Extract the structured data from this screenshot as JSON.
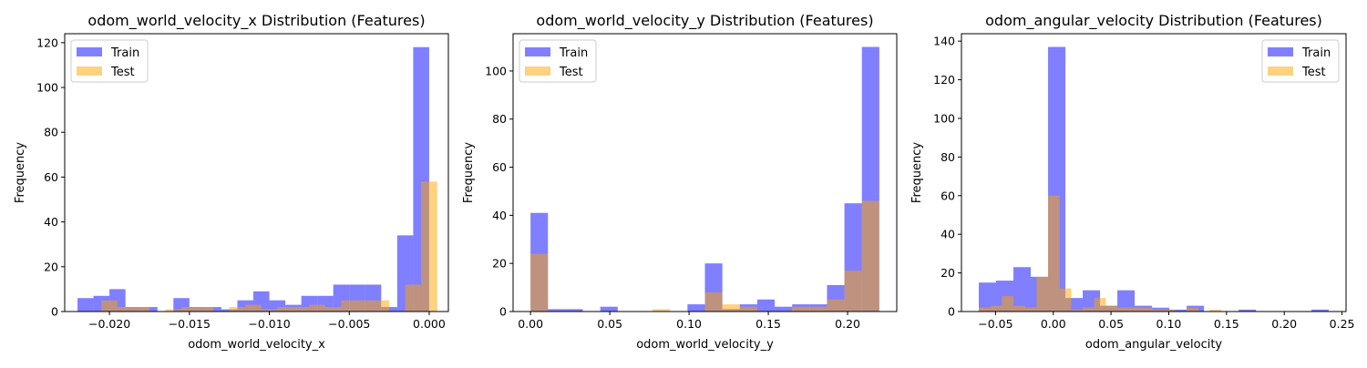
{
  "chart_data": [
    {
      "type": "histogram",
      "title": "odom_world_velocity_x Distribution (Features)",
      "xlabel": "odom_world_velocity_x",
      "ylabel": "Frequency",
      "xlim": [
        -0.0228,
        0.0012
      ],
      "ylim": [
        0,
        124
      ],
      "xticks": [
        -0.02,
        -0.015,
        -0.01,
        -0.005,
        0.0
      ],
      "xtick_labels": [
        "−0.020",
        "−0.015",
        "−0.010",
        "−0.005",
        "0.000"
      ],
      "yticks": [
        0,
        20,
        40,
        60,
        80,
        100,
        120
      ],
      "legend_position": "upper left",
      "series": [
        {
          "name": "Train",
          "color": "#0000ff",
          "opacity": 0.5,
          "bins": [
            [
              -0.022,
              -0.021,
              6
            ],
            [
              -0.021,
              -0.02,
              7
            ],
            [
              -0.02,
              -0.019,
              10
            ],
            [
              -0.019,
              -0.018,
              2
            ],
            [
              -0.018,
              -0.017,
              2
            ],
            [
              -0.017,
              -0.016,
              0
            ],
            [
              -0.016,
              -0.015,
              6
            ],
            [
              -0.015,
              -0.014,
              2
            ],
            [
              -0.014,
              -0.013,
              2
            ],
            [
              -0.013,
              -0.012,
              1
            ],
            [
              -0.012,
              -0.011,
              5
            ],
            [
              -0.011,
              -0.01,
              9
            ],
            [
              -0.01,
              -0.009,
              5
            ],
            [
              -0.009,
              -0.008,
              3
            ],
            [
              -0.008,
              -0.007,
              7
            ],
            [
              -0.007,
              -0.006,
              7
            ],
            [
              -0.006,
              -0.005,
              12
            ],
            [
              -0.005,
              -0.004,
              12
            ],
            [
              -0.004,
              -0.003,
              12
            ],
            [
              -0.003,
              -0.002,
              2
            ],
            [
              -0.002,
              -0.001,
              34
            ],
            [
              -0.001,
              0.0,
              118
            ]
          ]
        },
        {
          "name": "Test",
          "color": "#ffa500",
          "opacity": 0.5,
          "bins": [
            [
              -0.0205,
              -0.0195,
              5
            ],
            [
              -0.0195,
              -0.0185,
              2
            ],
            [
              -0.0185,
              -0.0175,
              2
            ],
            [
              -0.0165,
              -0.0155,
              1
            ],
            [
              -0.0155,
              -0.0145,
              2
            ],
            [
              -0.0145,
              -0.0135,
              2
            ],
            [
              -0.0125,
              -0.0115,
              2
            ],
            [
              -0.0115,
              -0.0105,
              3
            ],
            [
              -0.0105,
              -0.0095,
              1
            ],
            [
              -0.0095,
              -0.0085,
              2
            ],
            [
              -0.0085,
              -0.0075,
              2
            ],
            [
              -0.0075,
              -0.0065,
              3
            ],
            [
              -0.0065,
              -0.0055,
              2
            ],
            [
              -0.0055,
              -0.0045,
              5
            ],
            [
              -0.0045,
              -0.0035,
              5
            ],
            [
              -0.0035,
              -0.0025,
              5
            ],
            [
              -0.0015,
              -0.0005,
              12
            ],
            [
              -0.0005,
              0.0005,
              58
            ]
          ]
        }
      ]
    },
    {
      "type": "histogram",
      "title": "odom_world_velocity_y Distribution (Features)",
      "xlabel": "odom_world_velocity_y",
      "ylabel": "Frequency",
      "xlim": [
        -0.011,
        0.231
      ],
      "ylim": [
        0,
        115.5
      ],
      "xticks": [
        0.0,
        0.05,
        0.1,
        0.15,
        0.2
      ],
      "xtick_labels": [
        "0.00",
        "0.05",
        "0.10",
        "0.15",
        "0.20"
      ],
      "yticks": [
        0,
        20,
        40,
        60,
        80,
        100
      ],
      "legend_position": "upper left",
      "series": [
        {
          "name": "Train",
          "color": "#0000ff",
          "opacity": 0.5,
          "bins": [
            [
              0.0,
              0.011,
              41
            ],
            [
              0.011,
              0.022,
              1
            ],
            [
              0.022,
              0.033,
              1
            ],
            [
              0.044,
              0.055,
              2
            ],
            [
              0.099,
              0.11,
              3
            ],
            [
              0.11,
              0.121,
              20
            ],
            [
              0.121,
              0.132,
              1
            ],
            [
              0.132,
              0.143,
              3
            ],
            [
              0.143,
              0.154,
              5
            ],
            [
              0.154,
              0.165,
              2
            ],
            [
              0.165,
              0.176,
              3
            ],
            [
              0.176,
              0.187,
              3
            ],
            [
              0.187,
              0.198,
              11
            ],
            [
              0.198,
              0.209,
              45
            ],
            [
              0.209,
              0.22,
              110
            ]
          ]
        },
        {
          "name": "Test",
          "color": "#ffa500",
          "opacity": 0.5,
          "bins": [
            [
              0.0,
              0.011,
              24
            ],
            [
              0.077,
              0.088,
              1
            ],
            [
              0.11,
              0.121,
              8
            ],
            [
              0.121,
              0.132,
              3
            ],
            [
              0.132,
              0.143,
              2
            ],
            [
              0.165,
              0.176,
              2
            ],
            [
              0.176,
              0.187,
              2
            ],
            [
              0.187,
              0.198,
              5
            ],
            [
              0.198,
              0.209,
              17
            ],
            [
              0.209,
              0.22,
              46
            ]
          ]
        }
      ]
    },
    {
      "type": "histogram",
      "title": "odom_angular_velocity Distribution (Features)",
      "xlabel": "odom_angular_velocity",
      "ylabel": "Frequency",
      "xlim": [
        -0.0795,
        0.2535
      ],
      "ylim": [
        0,
        143.85
      ],
      "xticks": [
        -0.05,
        0.0,
        0.05,
        0.1,
        0.15,
        0.2,
        0.25
      ],
      "xtick_labels": [
        "−0.05",
        "0.00",
        "0.05",
        "0.10",
        "0.15",
        "0.20",
        "0.25"
      ],
      "yticks": [
        0,
        20,
        40,
        60,
        80,
        100,
        120,
        140
      ],
      "legend_position": "upper right",
      "series": [
        {
          "name": "Train",
          "color": "#0000ff",
          "opacity": 0.5,
          "bins": [
            [
              -0.0645,
              -0.0495,
              15
            ],
            [
              -0.0495,
              -0.0345,
              16
            ],
            [
              -0.0345,
              -0.0195,
              23
            ],
            [
              -0.0195,
              -0.0045,
              18
            ],
            [
              -0.0045,
              0.0105,
              137
            ],
            [
              0.0105,
              0.0255,
              7
            ],
            [
              0.0255,
              0.0405,
              11
            ],
            [
              0.0405,
              0.0555,
              3
            ],
            [
              0.0555,
              0.0705,
              11
            ],
            [
              0.0705,
              0.0855,
              3
            ],
            [
              0.0855,
              0.1005,
              2
            ],
            [
              0.1005,
              0.1155,
              1
            ],
            [
              0.1155,
              0.1305,
              3
            ],
            [
              0.1605,
              0.1755,
              1
            ],
            [
              0.2235,
              0.2385,
              1
            ]
          ]
        },
        {
          "name": "Test",
          "color": "#ffa500",
          "opacity": 0.5,
          "bins": [
            [
              -0.0645,
              -0.0545,
              2
            ],
            [
              -0.0545,
              -0.0445,
              3
            ],
            [
              -0.0445,
              -0.0345,
              8
            ],
            [
              -0.0345,
              -0.0245,
              3
            ],
            [
              -0.0245,
              -0.0145,
              2
            ],
            [
              -0.0145,
              -0.0045,
              18
            ],
            [
              -0.0045,
              0.0055,
              60
            ],
            [
              0.0055,
              0.0155,
              12
            ],
            [
              0.0155,
              0.0255,
              1
            ],
            [
              0.0255,
              0.0355,
              2
            ],
            [
              0.0355,
              0.0455,
              7
            ],
            [
              0.0455,
              0.0555,
              3
            ],
            [
              0.0555,
              0.0655,
              2
            ],
            [
              0.0655,
              0.0755,
              2
            ],
            [
              0.0755,
              0.0855,
              2
            ],
            [
              0.0855,
              0.0955,
              1
            ],
            [
              0.0955,
              0.1055,
              1
            ],
            [
              0.1155,
              0.1255,
              2
            ],
            [
              0.1355,
              0.1455,
              1
            ]
          ]
        }
      ]
    }
  ]
}
